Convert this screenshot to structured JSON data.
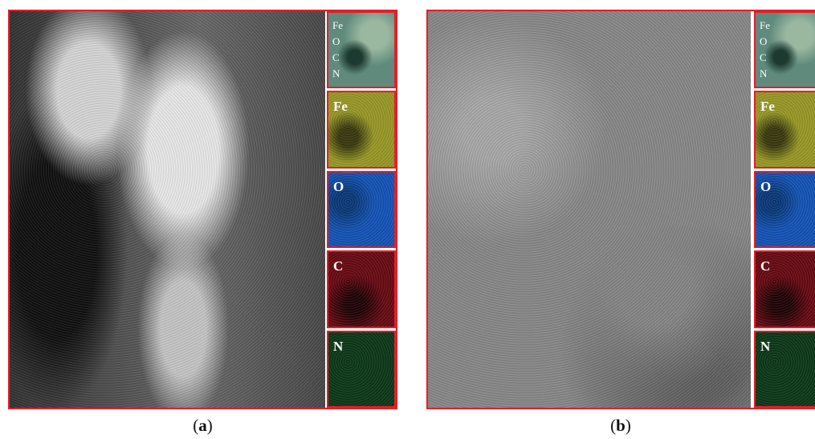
{
  "panels": [
    {
      "overlay_labels": [
        "Fe",
        "O",
        "C",
        "N"
      ],
      "maps": [
        {
          "label": "Fe"
        },
        {
          "label": "O"
        },
        {
          "label": "C"
        },
        {
          "label": "N"
        }
      ],
      "caption": [
        "(",
        "a",
        ")"
      ]
    },
    {
      "overlay_labels": [
        "Fe",
        "O",
        "C",
        "N"
      ],
      "maps": [
        {
          "label": "Fe"
        },
        {
          "label": "O"
        },
        {
          "label": "C"
        },
        {
          "label": "N"
        }
      ],
      "caption": [
        "(",
        "b",
        ")"
      ]
    }
  ]
}
